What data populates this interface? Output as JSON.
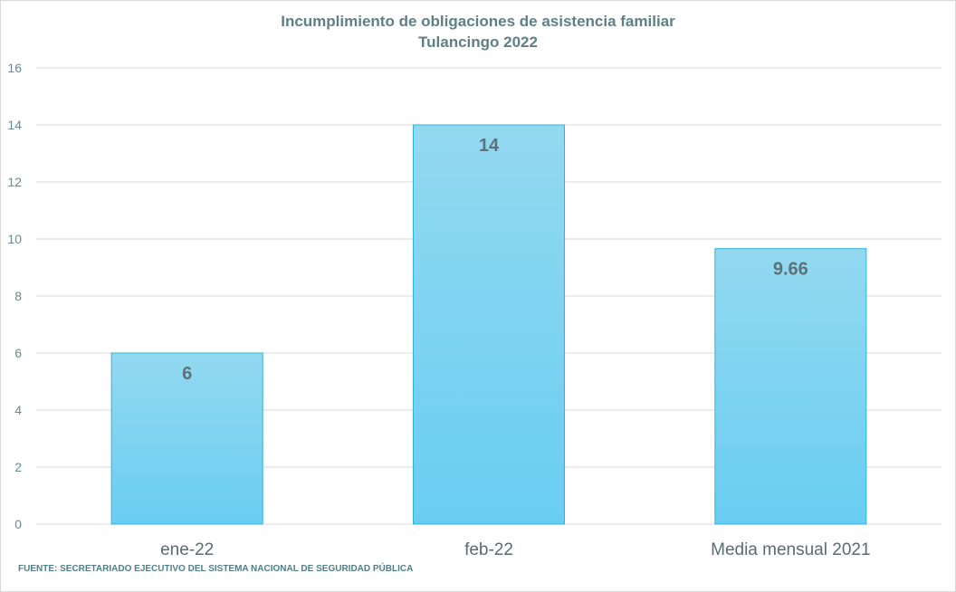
{
  "chart_data": {
    "type": "bar",
    "title": "Incumplimiento de obligaciones de asistencia familiar",
    "subtitle": "Tulancingo 2022",
    "categories": [
      "ene-22",
      "feb-22",
      "Media mensual 2021"
    ],
    "values": [
      6,
      14,
      9.66
    ],
    "data_labels": [
      "6",
      "14",
      "9.66"
    ],
    "y_ticks": [
      0,
      2,
      4,
      6,
      8,
      10,
      12,
      14,
      16
    ],
    "ylim": [
      0,
      16
    ],
    "grid": true,
    "legend": "none",
    "colors": {
      "bar_top": "#93d9f0",
      "bar_bottom": "#69cdf2",
      "bar_border": "#2fb3d9",
      "grid": "#d9d9d9"
    }
  },
  "source": "FUENTE: SECRETARIADO EJECUTIVO DEL SISTEMA NACIONAL DE SEGURIDAD PÚBLICA"
}
